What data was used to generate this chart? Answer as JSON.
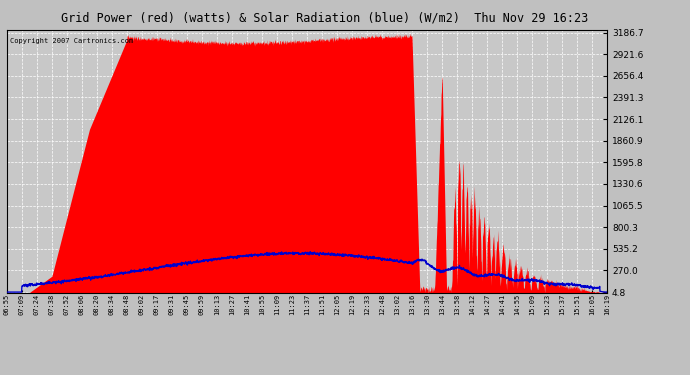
{
  "title": "Grid Power (red) (watts) & Solar Radiation (blue) (W/m2)  Thu Nov 29 16:23",
  "copyright": "Copyright 2007 Cartronics.com",
  "y_ticks": [
    4.8,
    270.0,
    535.2,
    800.3,
    1065.5,
    1330.6,
    1595.8,
    1860.9,
    2126.1,
    2391.3,
    2656.4,
    2921.6,
    3186.7
  ],
  "y_min": 0,
  "y_max": 3186.7,
  "bg_color": "#c0c0c0",
  "plot_bg_color": "#c8c8c8",
  "grid_color": "#ffffff",
  "red_color": "#ff0000",
  "blue_color": "#0000cc",
  "x_labels": [
    "06:55",
    "07:09",
    "07:24",
    "07:38",
    "07:52",
    "08:06",
    "08:20",
    "08:34",
    "08:48",
    "09:02",
    "09:17",
    "09:31",
    "09:45",
    "09:59",
    "10:13",
    "10:27",
    "10:41",
    "10:55",
    "11:09",
    "11:23",
    "11:37",
    "11:51",
    "12:05",
    "12:19",
    "12:33",
    "12:48",
    "13:02",
    "13:16",
    "13:30",
    "13:44",
    "13:58",
    "14:12",
    "14:27",
    "14:41",
    "14:55",
    "15:09",
    "15:23",
    "15:37",
    "15:51",
    "16:05",
    "16:19"
  ],
  "figwidth": 6.9,
  "figheight": 3.75,
  "dpi": 100
}
